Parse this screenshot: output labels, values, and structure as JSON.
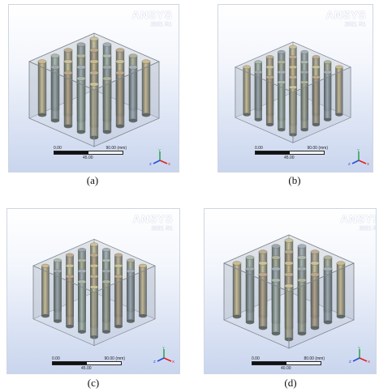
{
  "brand": {
    "name": "ANSYS",
    "version": "2021 R1"
  },
  "panels": [
    {
      "caption": "(a)",
      "scale_start": "0.00",
      "scale_end": "90.00 (mm)",
      "scale_mid": "45.00",
      "model": "cylinder-array-model"
    },
    {
      "caption": "(b)",
      "scale_start": "0.00",
      "scale_end": "90.00 (mm)",
      "scale_mid": "45.00",
      "model": "cylinder-array-model"
    },
    {
      "caption": "(c)",
      "scale_start": "0.00",
      "scale_end": "90.00 (mm)",
      "scale_mid": "45.00",
      "model": "cylinder-array-model"
    },
    {
      "caption": "(d)",
      "scale_start": "0.00",
      "scale_end": "80.00 (mm)",
      "scale_mid": "40.00",
      "model": "cylinder-array-model"
    }
  ],
  "axes": {
    "x": "X",
    "y": "Y",
    "z": "Z"
  },
  "colors": {
    "x_axis": "#e02020",
    "y_axis": "#2fa84f",
    "z_axis": "#2450d8",
    "banner": "#ffffff"
  }
}
